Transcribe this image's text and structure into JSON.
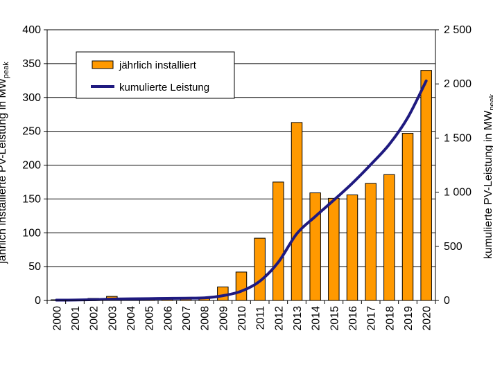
{
  "chart_data": {
    "type": "bar",
    "categories": [
      "2000",
      "2001",
      "2002",
      "2003",
      "2004",
      "2005",
      "2006",
      "2007",
      "2008",
      "2009",
      "2010",
      "2011",
      "2012",
      "2013",
      "2014",
      "2015",
      "2016",
      "2017",
      "2018",
      "2019",
      "2020"
    ],
    "series": [
      {
        "name": "jährlich installiert",
        "type": "bar",
        "axis": "left",
        "color": "#FF9900",
        "values": [
          1,
          1,
          3,
          6,
          2,
          2,
          2,
          2,
          3,
          20,
          42,
          92,
          175,
          263,
          159,
          151,
          156,
          173,
          186,
          247,
          340
        ]
      },
      {
        "name": "kumulierte Leistung",
        "type": "line",
        "axis": "right",
        "color": "#1F1A80",
        "values": [
          3,
          4,
          7,
          13,
          15,
          17,
          19,
          21,
          24,
          44,
          86,
          178,
          353,
          616,
          775,
          926,
          1082,
          1255,
          1441,
          1688,
          2028
        ]
      }
    ],
    "y_left": {
      "label": "jährlich installierte PV-Leistung in MW",
      "label_sub": "peak",
      "lim": [
        0,
        400
      ],
      "ticks": [
        "0",
        "50",
        "100",
        "150",
        "200",
        "250",
        "300",
        "350",
        "400"
      ]
    },
    "y_right": {
      "label": "kumulierte PV-Leistung in MW",
      "label_sub": "peak",
      "lim": [
        0,
        2500
      ],
      "ticks": [
        "0",
        "500",
        "1 000",
        "1 500",
        "2 000",
        "2 500"
      ]
    },
    "grid": true,
    "legend_position": "top-left"
  }
}
